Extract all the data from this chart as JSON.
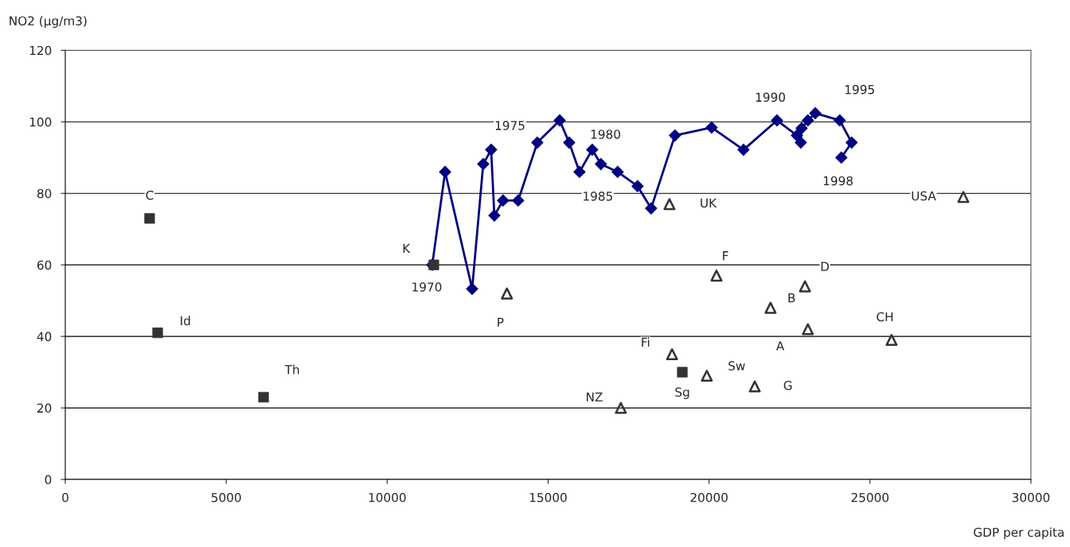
{
  "chart_data": {
    "type": "scatter",
    "xlabel": "GDP per capita",
    "ylabel": "NO2 (μg/m3)",
    "xlim": [
      0,
      30000
    ],
    "xticks": [
      0,
      5000,
      10000,
      15000,
      20000,
      25000,
      30000
    ],
    "ylim": [
      0,
      120
    ],
    "yticks": [
      0,
      20,
      40,
      60,
      80,
      100,
      120
    ],
    "grid": "y",
    "legend": false,
    "series": [
      {
        "type": "line",
        "color": "#000080",
        "marker": "diamond",
        "line_style": "solid",
        "x": [
          11400,
          11800,
          12640,
          12985,
          13230,
          13330,
          13600,
          14070,
          14665,
          15360,
          15655,
          15975,
          16370,
          16640,
          17160,
          17780,
          18200,
          18940,
          20080,
          21070,
          22110,
          22730,
          22850,
          22875,
          23070,
          23300,
          24060,
          24430,
          24110
        ],
        "values": [
          60,
          86,
          53.3,
          88.2,
          92.2,
          73.8,
          78,
          78,
          94.2,
          100.4,
          94.2,
          86,
          92.2,
          88.2,
          86,
          82,
          75.8,
          96.2,
          98.4,
          92.2,
          100.4,
          96.2,
          94.2,
          98.2,
          100.4,
          102.4,
          100.4,
          94.2,
          90
        ]
      },
      {
        "color": "#333333",
        "marker": "square",
        "x": [
          2620,
          2870,
          6160,
          11450,
          19170
        ],
        "values": [
          73,
          41,
          23,
          60,
          30
        ]
      },
      {
        "color": "#333333",
        "marker": "triangle",
        "x": [
          18770,
          27900,
          20230,
          22980,
          21910,
          23070,
          25670,
          13720,
          18850,
          19930,
          21420,
          17260
        ],
        "values": [
          77,
          79,
          57,
          54,
          48,
          42,
          39,
          52,
          35,
          29,
          26,
          20
        ]
      }
    ],
    "annotations": [
      {
        "text": "C",
        "x": 2620,
        "y": 73
      },
      {
        "text": "Id",
        "x": 2870,
        "y": 41
      },
      {
        "text": "Th",
        "x": 6160,
        "y": 23
      },
      {
        "text": "K",
        "x": 11450,
        "y": 60
      },
      {
        "text": "Sg",
        "x": 19170,
        "y": 30
      },
      {
        "text": "UK",
        "x": 18770,
        "y": 77
      },
      {
        "text": "USA",
        "x": 27900,
        "y": 79
      },
      {
        "text": "F",
        "x": 20230,
        "y": 57
      },
      {
        "text": "D",
        "x": 22980,
        "y": 54
      },
      {
        "text": "B",
        "x": 21910,
        "y": 48
      },
      {
        "text": "A",
        "x": 23070,
        "y": 42
      },
      {
        "text": "CH",
        "x": 25670,
        "y": 39
      },
      {
        "text": "P",
        "x": 13720,
        "y": 52
      },
      {
        "text": "Fi",
        "x": 18850,
        "y": 35
      },
      {
        "text": "Sw",
        "x": 19930,
        "y": 29
      },
      {
        "text": "G",
        "x": 21420,
        "y": 26
      },
      {
        "text": "NZ",
        "x": 17260,
        "y": 20
      },
      {
        "text": "1970",
        "x": 11400,
        "y": 60
      },
      {
        "text": "1975",
        "x": 13230,
        "y": 92.2
      },
      {
        "text": "1980",
        "x": 16370,
        "y": 92.2
      },
      {
        "text": "1985",
        "x": 17780,
        "y": 82
      },
      {
        "text": "1990",
        "x": 22110,
        "y": 100.4
      },
      {
        "text": "1995",
        "x": 24060,
        "y": 100.4
      },
      {
        "text": "1998",
        "x": 24110,
        "y": 90
      }
    ]
  }
}
